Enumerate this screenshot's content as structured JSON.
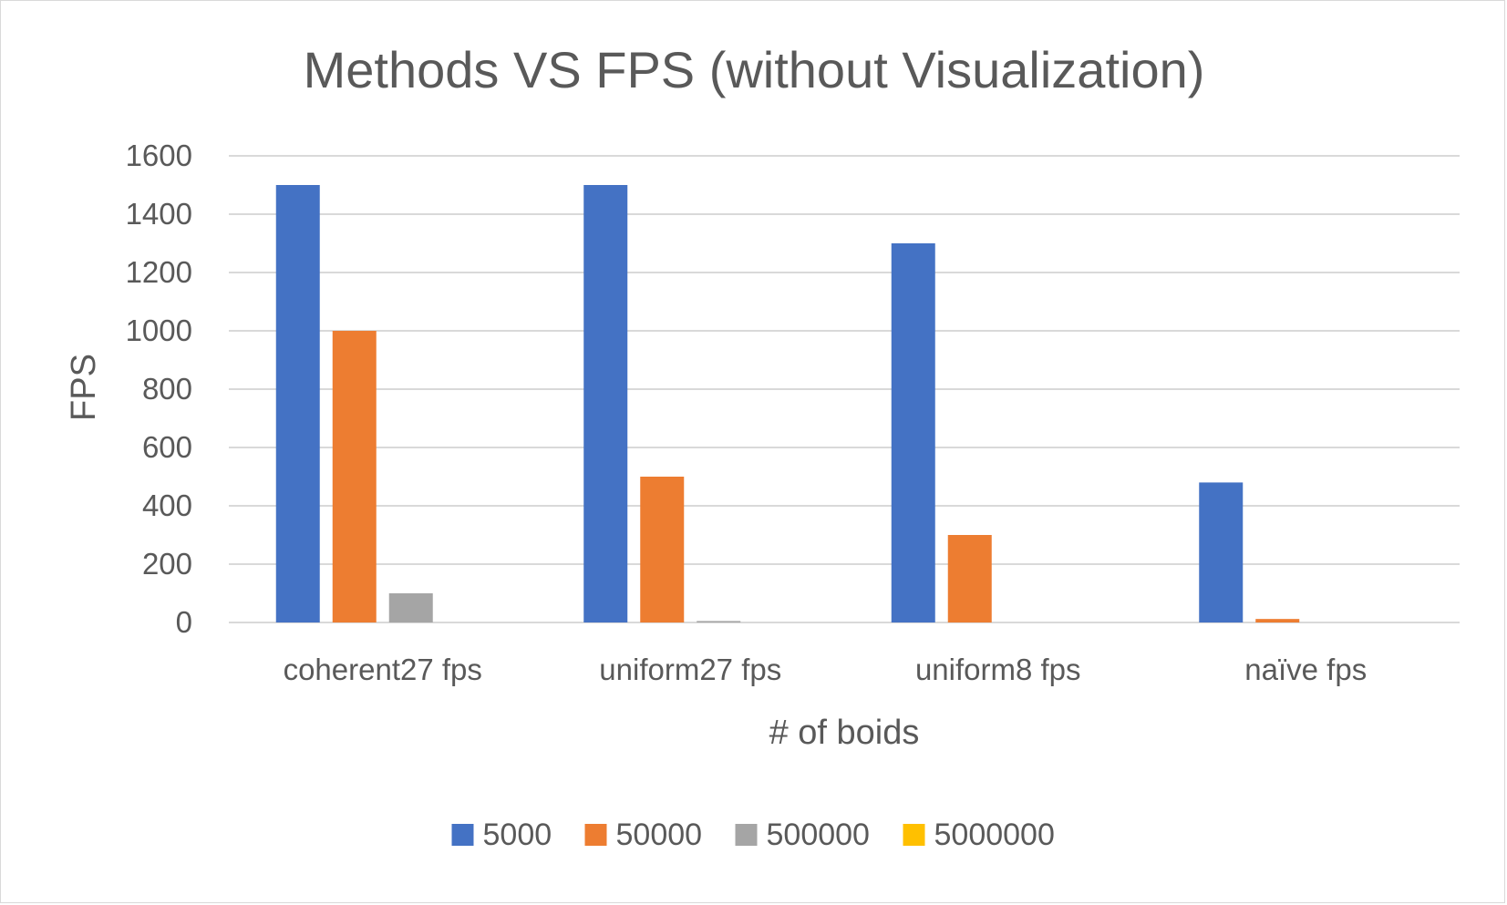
{
  "chart_data": {
    "type": "bar",
    "title": "Methods VS FPS (without Visualization)",
    "xlabel": "# of boids",
    "ylabel": "FPS",
    "ylim": [
      0,
      1600
    ],
    "yticks": [
      "0",
      "200",
      "400",
      "600",
      "800",
      "1000",
      "1200",
      "1400",
      "1600"
    ],
    "grid": true,
    "legend_position": "bottom",
    "categories": [
      "coherent27 fps",
      "uniform27 fps",
      "uniform8 fps",
      "naïve fps"
    ],
    "series": [
      {
        "name": "5000",
        "color": "#4472c4",
        "values": [
          1500,
          1500,
          1300,
          480
        ]
      },
      {
        "name": "50000",
        "color": "#ed7d31",
        "values": [
          1000,
          500,
          300,
          12
        ]
      },
      {
        "name": "500000",
        "color": "#a5a5a5",
        "values": [
          100,
          5,
          0,
          0
        ]
      },
      {
        "name": "5000000",
        "color": "#ffc000",
        "values": [
          0,
          0,
          0,
          0
        ]
      }
    ]
  }
}
